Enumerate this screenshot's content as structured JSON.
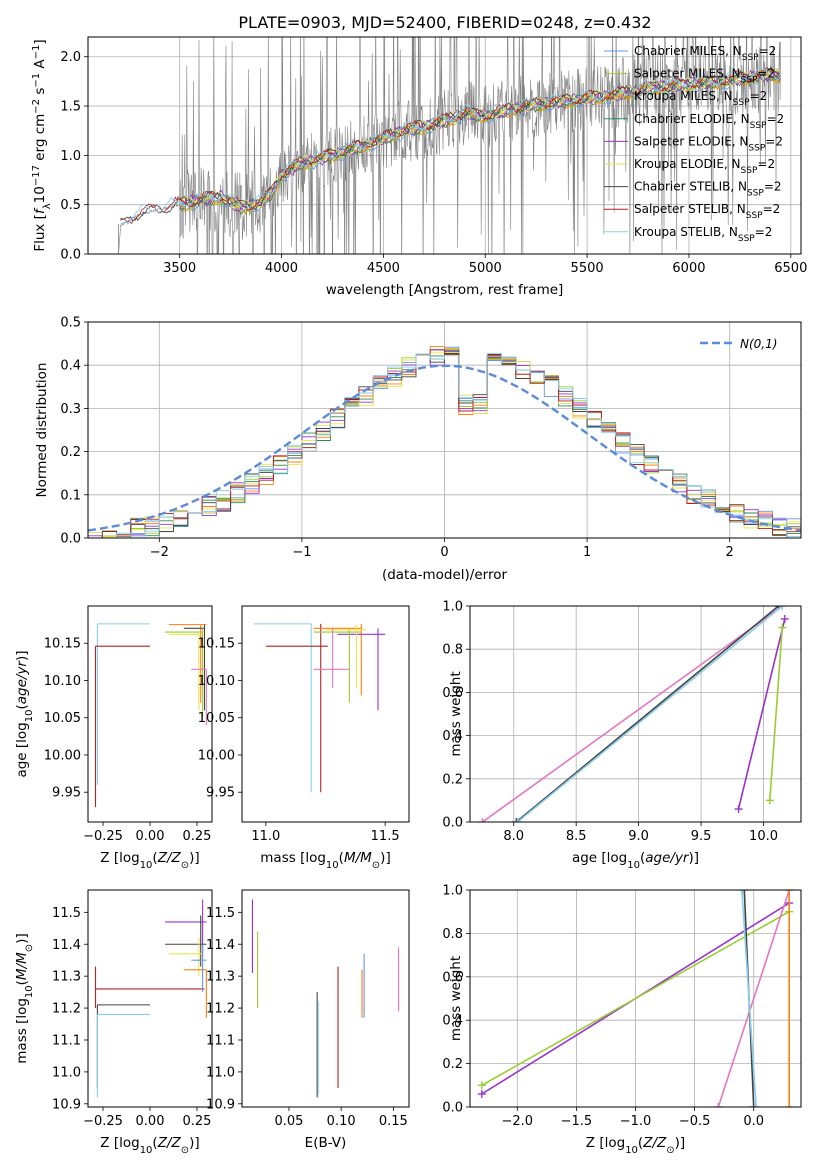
{
  "figure": {
    "title": "PLATE=0903, MJD=52400, FIBERID=0248, z=0.432"
  },
  "colors": {
    "Chabrier MILES": "#6495ed",
    "Salpeter MILES": "#9acd32",
    "Kroupa MILES": "#ff7f0e",
    "Chabrier ELODIE": "#2e8b57",
    "Salpeter ELODIE": "#9932cc",
    "Kroupa ELODIE": "#e6e64c",
    "Chabrier STELIB": "#444444",
    "Salpeter STELIB": "#b22222",
    "Kroupa STELIB": "#87ceeb",
    "data": "#808080",
    "pink": "#e377c2",
    "normal": "#5b8bd9"
  },
  "chart_data": [
    {
      "type": "line",
      "title": "PLATE=0903, MJD=52400, FIBERID=0248, z=0.432",
      "xlabel": "wavelength [Angstrom, rest frame]",
      "ylabel": "Flux [f_λ 10^-17 erg cm^-2 s^-1 A^-1]",
      "xlim": [
        3050,
        6550
      ],
      "ylim": [
        0,
        2.2
      ],
      "xticks": [
        3500,
        4000,
        4500,
        5000,
        5500,
        6000,
        6500
      ],
      "yticks": [
        0.0,
        0.5,
        1.0,
        1.5,
        2.0
      ],
      "grid": true,
      "legend_position": "top-right",
      "legend": [
        {
          "label": "Chabrier MILES, N",
          "sub": "SSP",
          "tail": "=2",
          "color": "#6495ed"
        },
        {
          "label": "Salpeter MILES, N",
          "sub": "SSP",
          "tail": "=2",
          "color": "#9acd32"
        },
        {
          "label": "Kroupa MILES, N",
          "sub": "SSP",
          "tail": "=2",
          "color": "#ff7f0e"
        },
        {
          "label": "Chabrier ELODIE, N",
          "sub": "SSP",
          "tail": "=2",
          "color": "#2e8b57"
        },
        {
          "label": "Salpeter ELODIE, N",
          "sub": "SSP",
          "tail": "=2",
          "color": "#9932cc"
        },
        {
          "label": "Kroupa ELODIE, N",
          "sub": "SSP",
          "tail": "=2",
          "color": "#e6e64c"
        },
        {
          "label": "Chabrier STELIB, N",
          "sub": "SSP",
          "tail": "=2",
          "color": "#444444"
        },
        {
          "label": "Salpeter STELIB, N",
          "sub": "SSP",
          "tail": "=2",
          "color": "#b22222"
        },
        {
          "label": "Kroupa STELIB, N",
          "sub": "SSP",
          "tail": "=2",
          "color": "#87ceeb"
        }
      ],
      "continuum": {
        "x": [
          3200,
          3300,
          3400,
          3500,
          3600,
          3700,
          3800,
          3900,
          3950,
          4000,
          4100,
          4200,
          4300,
          4400,
          4500,
          4600,
          4700,
          4800,
          4900,
          5000,
          5200,
          5400,
          5600,
          5800,
          6000,
          6200,
          6400,
          6450
        ],
        "y": [
          0.28,
          0.4,
          0.45,
          0.5,
          0.55,
          0.58,
          0.47,
          0.52,
          0.62,
          0.8,
          0.92,
          0.97,
          1.03,
          1.1,
          1.17,
          1.25,
          1.29,
          1.35,
          1.43,
          1.4,
          1.5,
          1.55,
          1.6,
          1.68,
          1.72,
          1.76,
          1.82,
          1.8
        ]
      }
    },
    {
      "type": "histogram",
      "xlabel": "(data-model)/error",
      "ylabel": "Normed distribution",
      "xlim": [
        -2.5,
        2.5
      ],
      "ylim": [
        0,
        0.5
      ],
      "xticks": [
        -2,
        -1,
        0,
        1,
        2
      ],
      "yticks": [
        0.0,
        0.1,
        0.2,
        0.3,
        0.4,
        0.5
      ],
      "grid": true,
      "legend_position": "top-right",
      "normal_label": "N(0,1)",
      "bin_width": 0.1
    },
    {
      "type": "errorbar",
      "xlabel": "Z [log10(Z/Z_sun)]",
      "ylabel": "age [log10(age/yr)]",
      "xlim": [
        -0.33,
        0.33
      ],
      "ylim": [
        9.91,
        10.2
      ],
      "xticks": [
        -0.25,
        0.0,
        0.25
      ],
      "yticks": [
        9.95,
        10.0,
        10.05,
        10.1,
        10.15
      ],
      "items": [
        {
          "x": -0.28,
          "xl": -0.28,
          "xh": 0.0,
          "y": 10.176,
          "yl": 9.96,
          "yh": 10.176,
          "color": "#87ceeb"
        },
        {
          "x": -0.29,
          "xl": -0.29,
          "xh": 0.0,
          "y": 10.146,
          "yl": 9.93,
          "yh": 10.146,
          "color": "#b22222"
        },
        {
          "x": 0.27,
          "xl": 0.1,
          "xh": 0.3,
          "y": 10.175,
          "yl": 10.07,
          "yh": 10.175,
          "color": "#ff7f0e"
        },
        {
          "x": 0.29,
          "xl": 0.18,
          "xh": 0.29,
          "y": 10.17,
          "yl": 10.06,
          "yh": 10.175,
          "color": "#444444"
        },
        {
          "x": 0.28,
          "xl": 0.08,
          "xh": 0.28,
          "y": 10.165,
          "yl": 10.05,
          "yh": 10.17,
          "color": "#9acd32"
        },
        {
          "x": 0.26,
          "xl": 0.1,
          "xh": 0.26,
          "y": 10.162,
          "yl": 10.06,
          "yh": 10.165,
          "color": "#e6e64c"
        },
        {
          "x": 0.3,
          "xl": 0.22,
          "xh": 0.3,
          "y": 10.115,
          "yl": 10.04,
          "yh": 10.115,
          "color": "#e377c2"
        }
      ]
    },
    {
      "type": "errorbar",
      "xlabel": "mass [log10(M/M_sun)]",
      "xlim": [
        10.9,
        11.6
      ],
      "ylim": [
        9.91,
        10.2
      ],
      "xticks": [
        11.0,
        11.5
      ],
      "yticks": [
        9.95,
        10.0,
        10.05,
        10.1,
        10.15
      ],
      "items": [
        {
          "x": 11.19,
          "xl": 10.95,
          "xh": 11.19,
          "y": 10.176,
          "yl": 9.95,
          "yh": 10.176,
          "color": "#87ceeb"
        },
        {
          "x": 11.23,
          "xl": 11.0,
          "xh": 11.26,
          "y": 10.146,
          "yl": 9.95,
          "yh": 10.176,
          "color": "#b22222"
        },
        {
          "x": 11.4,
          "xl": 11.2,
          "xh": 11.4,
          "y": 10.17,
          "yl": 10.08,
          "yh": 10.176,
          "color": "#ff7f0e"
        },
        {
          "x": 11.47,
          "xl": 11.3,
          "xh": 11.5,
          "y": 10.162,
          "yl": 10.06,
          "yh": 10.17,
          "color": "#9932cc"
        },
        {
          "x": 11.35,
          "xl": 11.2,
          "xh": 11.4,
          "y": 10.165,
          "yl": 10.07,
          "yh": 10.17,
          "color": "#9acd32"
        },
        {
          "x": 11.38,
          "xl": 11.25,
          "xh": 11.42,
          "y": 10.168,
          "yl": 10.09,
          "yh": 10.175,
          "color": "#e6e64c"
        },
        {
          "x": 11.28,
          "xl": 11.2,
          "xh": 11.35,
          "y": 10.115,
          "yl": 10.09,
          "yh": 10.17,
          "color": "#e377c2"
        }
      ]
    },
    {
      "type": "line",
      "xlabel": "age [log10(age/yr)]",
      "ylabel": "mass weight",
      "xlim": [
        7.65,
        10.3
      ],
      "ylim": [
        0,
        1
      ],
      "xticks": [
        8.0,
        8.5,
        9.0,
        9.5,
        10.0
      ],
      "yticks": [
        0.0,
        0.2,
        0.4,
        0.6,
        0.8,
        1.0
      ],
      "grid": true,
      "series": [
        {
          "x": [
            7.75,
            10.15
          ],
          "y": [
            0.0,
            1.0
          ],
          "color": "#e377c2"
        },
        {
          "x": [
            8.02,
            10.12
          ],
          "y": [
            0.0,
            1.0
          ],
          "color": "#444444"
        },
        {
          "x": [
            8.03,
            10.15
          ],
          "y": [
            0.0,
            1.0
          ],
          "color": "#87ceeb"
        },
        {
          "x": [
            9.8,
            10.17
          ],
          "y": [
            0.06,
            0.94
          ],
          "color": "#9932cc"
        },
        {
          "x": [
            10.05,
            10.15
          ],
          "y": [
            0.1,
            0.9
          ],
          "color": "#9acd32"
        }
      ]
    },
    {
      "type": "errorbar",
      "xlabel": "Z [log10(Z/Z_sun)]",
      "ylabel": "mass [log10(M/M_sun)]",
      "xlim": [
        -0.33,
        0.33
      ],
      "ylim": [
        10.89,
        11.57
      ],
      "xticks": [
        -0.25,
        0.0,
        0.25
      ],
      "yticks": [
        10.9,
        11.0,
        11.1,
        11.2,
        11.3,
        11.4,
        11.5
      ],
      "items": [
        {
          "x": -0.29,
          "xl": -0.29,
          "xh": 0.29,
          "y": 11.26,
          "yl": 11.2,
          "yh": 11.33,
          "color": "#b22222"
        },
        {
          "x": -0.28,
          "xl": -0.28,
          "xh": 0.0,
          "y": 11.21,
          "yl": 10.95,
          "yh": 11.21,
          "color": "#444444"
        },
        {
          "x": -0.28,
          "xl": -0.28,
          "xh": 0.0,
          "y": 11.18,
          "yl": 10.92,
          "yh": 11.18,
          "color": "#87ceeb"
        },
        {
          "x": 0.28,
          "xl": 0.08,
          "xh": 0.3,
          "y": 11.47,
          "yl": 11.36,
          "yh": 11.54,
          "color": "#9932cc"
        },
        {
          "x": 0.27,
          "xl": 0.08,
          "xh": 0.3,
          "y": 11.4,
          "yl": 11.33,
          "yh": 11.49,
          "color": "#444444"
        },
        {
          "x": 0.26,
          "xl": 0.1,
          "xh": 0.28,
          "y": 11.37,
          "yl": 11.3,
          "yh": 11.42,
          "color": "#e6e64c"
        },
        {
          "x": 0.3,
          "xl": 0.18,
          "xh": 0.3,
          "y": 11.32,
          "yl": 11.17,
          "yh": 11.32,
          "color": "#ff7f0e"
        },
        {
          "x": 0.28,
          "xl": 0.22,
          "xh": 0.3,
          "y": 11.35,
          "yl": 11.25,
          "yh": 11.4,
          "color": "#6495ed"
        }
      ]
    },
    {
      "type": "errorbar",
      "xlabel": "E(B-V)",
      "xlim": [
        0.005,
        0.165
      ],
      "ylim": [
        10.89,
        11.57
      ],
      "xticks": [
        0.05,
        0.1,
        0.15
      ],
      "yticks": [
        10.9,
        11.0,
        11.1,
        11.2,
        11.3,
        11.4,
        11.5
      ],
      "items": [
        {
          "x": 0.015,
          "xl": 0.015,
          "xh": 0.015,
          "y": 11.4,
          "yl": 11.31,
          "yh": 11.54,
          "color": "#9932cc"
        },
        {
          "x": 0.02,
          "xl": 0.02,
          "xh": 0.02,
          "y": 11.38,
          "yl": 11.2,
          "yh": 11.44,
          "color": "#9acd32"
        },
        {
          "x": 0.077,
          "xl": 0.077,
          "xh": 0.077,
          "y": 11.2,
          "yl": 10.92,
          "yh": 11.25,
          "color": "#444444"
        },
        {
          "x": 0.078,
          "xl": 0.078,
          "xh": 0.078,
          "y": 11.1,
          "yl": 10.93,
          "yh": 11.22,
          "color": "#87ceeb"
        },
        {
          "x": 0.097,
          "xl": 0.097,
          "xh": 0.097,
          "y": 11.15,
          "yl": 10.95,
          "yh": 11.33,
          "color": "#b22222"
        },
        {
          "x": 0.122,
          "xl": 0.122,
          "xh": 0.122,
          "y": 11.27,
          "yl": 11.17,
          "yh": 11.37,
          "color": "#6495ed"
        },
        {
          "x": 0.12,
          "xl": 0.12,
          "xh": 0.12,
          "y": 11.25,
          "yl": 11.17,
          "yh": 11.32,
          "color": "#ff7f0e"
        },
        {
          "x": 0.155,
          "xl": 0.155,
          "xh": 0.155,
          "y": 11.3,
          "yl": 11.19,
          "yh": 11.39,
          "color": "#e377c2"
        }
      ]
    },
    {
      "type": "line",
      "xlabel": "Z [log10(Z/Z_sun)]",
      "ylabel": "mass weight",
      "xlim": [
        -2.4,
        0.4
      ],
      "ylim": [
        0,
        1
      ],
      "xticks": [
        -2.0,
        -1.5,
        -1.0,
        -0.5,
        0.0
      ],
      "yticks": [
        0.0,
        0.2,
        0.4,
        0.6,
        0.8,
        1.0
      ],
      "grid": true,
      "series": [
        {
          "x": [
            -2.3,
            0.3
          ],
          "y": [
            0.06,
            0.94
          ],
          "color": "#9932cc"
        },
        {
          "x": [
            -2.3,
            0.3
          ],
          "y": [
            0.1,
            0.9
          ],
          "color": "#9acd32"
        },
        {
          "x": [
            -0.3,
            0.3
          ],
          "y": [
            0.0,
            1.0
          ],
          "color": "#e377c2"
        },
        {
          "x": [
            -0.08,
            0.0
          ],
          "y": [
            1.0,
            0.0
          ],
          "color": "#444444"
        },
        {
          "x": [
            -0.1,
            0.02
          ],
          "y": [
            1.0,
            0.0
          ],
          "color": "#87ceeb"
        },
        {
          "x": [
            0.3,
            0.3
          ],
          "y": [
            0.0,
            1.0
          ],
          "color": "#ff7f0e"
        }
      ]
    }
  ]
}
